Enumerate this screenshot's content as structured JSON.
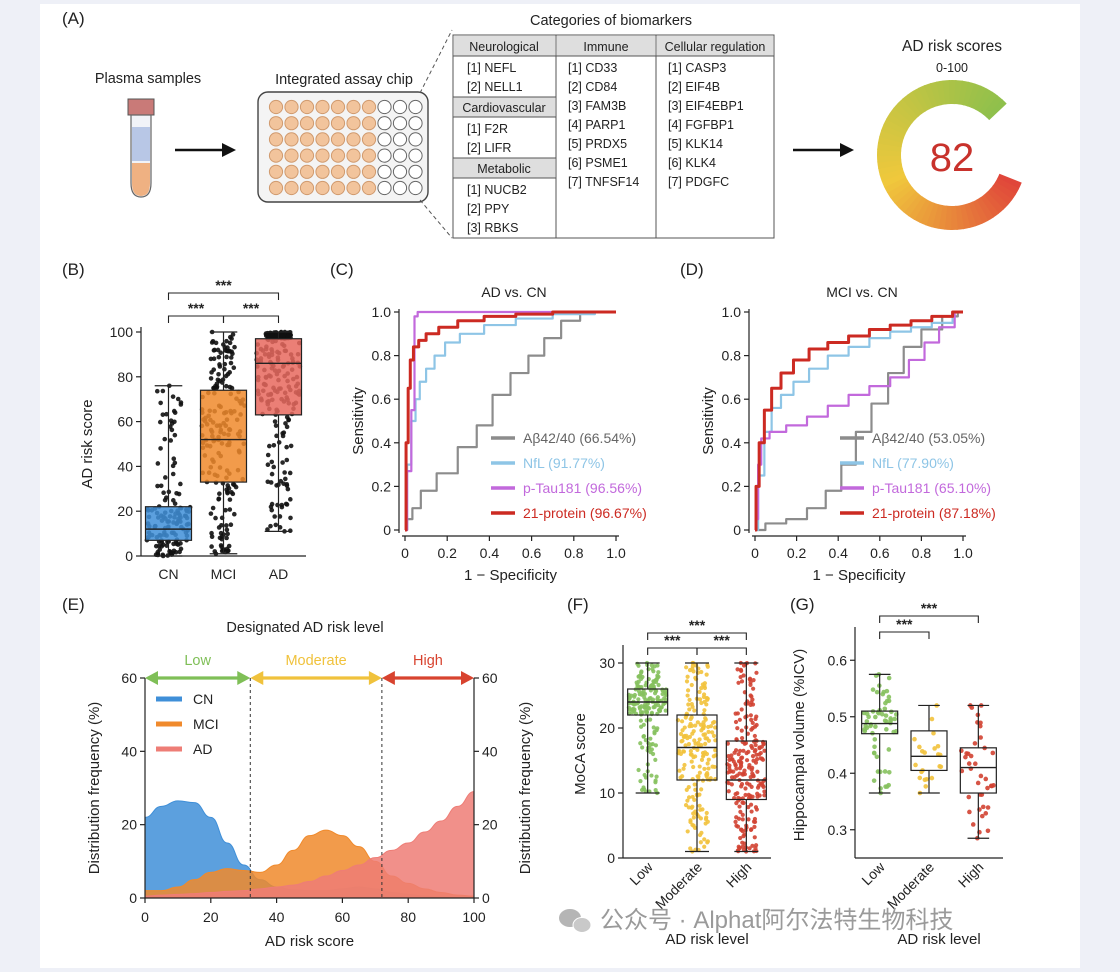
{
  "panel_tags": [
    "(A)",
    "(B)",
    "(C)",
    "(D)",
    "(E)",
    "(F)",
    "(G)"
  ],
  "panel_a": {
    "plasma_label": "Plasma samples",
    "chip_label": "Integrated assay chip",
    "table_title": "Categories of biomarkers",
    "neurological": {
      "header": "Neurological",
      "items": [
        "[1]  NEFL",
        "[2]  NELL1"
      ]
    },
    "cardiovascular": {
      "header": "Cardiovascular",
      "items": [
        "[1]  F2R",
        "[2]  LIFR"
      ]
    },
    "metabolic": {
      "header": "Metabolic",
      "items": [
        "[1]  NUCB2",
        "[2]  PPY",
        "[3]  RBKS"
      ]
    },
    "immune": {
      "header": "Immune",
      "items": [
        "[1]  CD33",
        "[2]  CD84",
        "[3]  FAM3B",
        "[4]  PARP1",
        "[5]  PRDX5",
        "[6]  PSME1",
        "[7]  TNFSF14"
      ]
    },
    "cellular": {
      "header": "Cellular regulation",
      "items": [
        "[1]  CASP3",
        "[2]  EIF4B",
        "[3]  EIF4EBP1",
        "[4]  FGFBP1",
        "[5]  KLK14",
        "[6]  KLK4",
        "[7]  PDGFC"
      ]
    },
    "risk_title": "AD risk scores",
    "risk_range": "0-100",
    "risk_value": "82",
    "colors": {
      "well": "#f2c49c",
      "tube_cap": "#c97a78",
      "tube_plasma": "#b8c7e6",
      "tube_cells": "#efb182",
      "gauge_red": "#e0463a",
      "gauge_yellow": "#f2d14a",
      "gauge_green": "#8cc04c",
      "score_text": "#c8322c"
    }
  },
  "chart_data": [
    {
      "id": "B",
      "type": "box",
      "categories": [
        "CN",
        "MCI",
        "AD"
      ],
      "ylabel": "AD risk score",
      "ylim": [
        0,
        100
      ],
      "yticks": [
        0,
        20,
        40,
        60,
        80,
        100
      ],
      "box_stats": [
        {
          "min": 0,
          "q1": 7,
          "median": 12,
          "q3": 22,
          "max": 76,
          "color": "#3f8fd8"
        },
        {
          "min": 1,
          "q1": 33,
          "median": 52,
          "q3": 74,
          "max": 100,
          "color": "#f08a2c"
        },
        {
          "min": 11,
          "q1": 63,
          "median": 86,
          "q3": 97,
          "max": 100,
          "color": "#e8685e"
        }
      ],
      "significance": [
        {
          "from": 0,
          "to": 1,
          "label": "***"
        },
        {
          "from": 1,
          "to": 2,
          "label": "***"
        },
        {
          "from": 0,
          "to": 2,
          "label": "***"
        }
      ]
    },
    {
      "id": "C",
      "type": "line",
      "title": "AD vs. CN",
      "xlabel": "1 − Specificity",
      "ylabel": "Sensitivity",
      "xlim": [
        0,
        1
      ],
      "ylim": [
        0,
        1
      ],
      "ticks": [
        "0",
        "0.2",
        "0.4",
        "0.6",
        "0.8",
        "1.0"
      ],
      "legend_position": "bottom-right",
      "series": [
        {
          "name": "Aβ42/40 (66.54%)",
          "color": "#8c8c8c",
          "points": [
            [
              0,
              0
            ],
            [
              0.02,
              0.05
            ],
            [
              0.05,
              0.1
            ],
            [
              0.1,
              0.18
            ],
            [
              0.2,
              0.26
            ],
            [
              0.3,
              0.38
            ],
            [
              0.38,
              0.48
            ],
            [
              0.45,
              0.62
            ],
            [
              0.55,
              0.72
            ],
            [
              0.62,
              0.8
            ],
            [
              0.7,
              0.88
            ],
            [
              0.78,
              0.96
            ],
            [
              0.88,
              1
            ],
            [
              1,
              1
            ]
          ]
        },
        {
          "name": "NfL (91.77%)",
          "color": "#8ec5e6",
          "points": [
            [
              0,
              0
            ],
            [
              0.02,
              0.3
            ],
            [
              0.04,
              0.5
            ],
            [
              0.06,
              0.6
            ],
            [
              0.08,
              0.68
            ],
            [
              0.12,
              0.74
            ],
            [
              0.16,
              0.8
            ],
            [
              0.22,
              0.86
            ],
            [
              0.3,
              0.9
            ],
            [
              0.45,
              0.94
            ],
            [
              0.6,
              0.97
            ],
            [
              0.8,
              0.99
            ],
            [
              1,
              1
            ]
          ]
        },
        {
          "name": "p-Tau181 (96.56%)",
          "color": "#c269dc",
          "points": [
            [
              0,
              0
            ],
            [
              0.02,
              0.27
            ],
            [
              0.04,
              0.55
            ],
            [
              0.05,
              0.98
            ],
            [
              0.07,
              1
            ],
            [
              1,
              1
            ]
          ]
        },
        {
          "name": "21-protein (96.67%)",
          "color": "#cc2a22",
          "points": [
            [
              0,
              0
            ],
            [
              0.01,
              0.4
            ],
            [
              0.02,
              0.65
            ],
            [
              0.03,
              0.78
            ],
            [
              0.05,
              0.84
            ],
            [
              0.08,
              0.87
            ],
            [
              0.12,
              0.9
            ],
            [
              0.2,
              0.93
            ],
            [
              0.3,
              0.96
            ],
            [
              0.45,
              0.98
            ],
            [
              0.6,
              0.99
            ],
            [
              0.8,
              1
            ],
            [
              1,
              1
            ]
          ]
        }
      ]
    },
    {
      "id": "D",
      "type": "line",
      "title": "MCI vs. CN",
      "xlabel": "1 − Specificity",
      "ylabel": "Sensitivity",
      "xlim": [
        0,
        1
      ],
      "ylim": [
        0,
        1
      ],
      "ticks": [
        "0",
        "0.2",
        "0.4",
        "0.6",
        "0.8",
        "1.0"
      ],
      "legend_position": "bottom-right",
      "series": [
        {
          "name": "Aβ42/40 (53.05%)",
          "color": "#8c8c8c",
          "points": [
            [
              0,
              0
            ],
            [
              0.1,
              0.03
            ],
            [
              0.2,
              0.05
            ],
            [
              0.3,
              0.1
            ],
            [
              0.38,
              0.18
            ],
            [
              0.45,
              0.3
            ],
            [
              0.52,
              0.45
            ],
            [
              0.6,
              0.58
            ],
            [
              0.68,
              0.72
            ],
            [
              0.75,
              0.84
            ],
            [
              0.85,
              0.92
            ],
            [
              0.95,
              0.98
            ],
            [
              1,
              1
            ]
          ]
        },
        {
          "name": "NfL (77.90%)",
          "color": "#8ec5e6",
          "points": [
            [
              0,
              0
            ],
            [
              0.03,
              0.25
            ],
            [
              0.06,
              0.45
            ],
            [
              0.1,
              0.56
            ],
            [
              0.15,
              0.62
            ],
            [
              0.22,
              0.68
            ],
            [
              0.3,
              0.74
            ],
            [
              0.4,
              0.8
            ],
            [
              0.5,
              0.84
            ],
            [
              0.6,
              0.88
            ],
            [
              0.7,
              0.91
            ],
            [
              0.8,
              0.93
            ],
            [
              0.9,
              0.95
            ],
            [
              1,
              1
            ]
          ]
        },
        {
          "name": "p-Tau181 (65.10%)",
          "color": "#c269dc",
          "points": [
            [
              0,
              0
            ],
            [
              0.01,
              0.05
            ],
            [
              0.02,
              0.3
            ],
            [
              0.04,
              0.42
            ],
            [
              0.1,
              0.45
            ],
            [
              0.2,
              0.48
            ],
            [
              0.3,
              0.52
            ],
            [
              0.4,
              0.57
            ],
            [
              0.5,
              0.62
            ],
            [
              0.6,
              0.66
            ],
            [
              0.7,
              0.7
            ],
            [
              0.78,
              0.78
            ],
            [
              0.85,
              0.86
            ],
            [
              0.92,
              0.93
            ],
            [
              1,
              1
            ]
          ]
        },
        {
          "name": "21-protein (87.18%)",
          "color": "#cc2a22",
          "points": [
            [
              0,
              0
            ],
            [
              0.01,
              0.2
            ],
            [
              0.03,
              0.4
            ],
            [
              0.06,
              0.55
            ],
            [
              0.1,
              0.65
            ],
            [
              0.15,
              0.72
            ],
            [
              0.22,
              0.78
            ],
            [
              0.3,
              0.83
            ],
            [
              0.4,
              0.86
            ],
            [
              0.5,
              0.89
            ],
            [
              0.6,
              0.92
            ],
            [
              0.7,
              0.94
            ],
            [
              0.8,
              0.96
            ],
            [
              0.9,
              0.98
            ],
            [
              1,
              1
            ]
          ]
        }
      ]
    },
    {
      "id": "E",
      "type": "area",
      "title": "Designated AD risk level",
      "xlabel": "AD risk score",
      "ylabel": "Distribution frequency (%)",
      "xlim": [
        0,
        100
      ],
      "ylim": [
        0,
        60
      ],
      "xticks": [
        0,
        20,
        40,
        60,
        80,
        100
      ],
      "yticks": [
        0,
        20,
        40,
        60
      ],
      "levels": [
        {
          "label": "Low",
          "from": 0,
          "to": 32,
          "color": "#7fbf57"
        },
        {
          "label": "Moderate",
          "from": 32,
          "to": 72,
          "color": "#f0c23c"
        },
        {
          "label": "High",
          "from": 72,
          "to": 100,
          "color": "#d8432f"
        }
      ],
      "series": [
        {
          "name": "CN",
          "color": "#3f8fd8",
          "x": [
            0,
            5,
            10,
            15,
            20,
            25,
            30,
            35,
            40,
            45,
            50,
            55,
            60,
            65,
            70,
            75,
            80,
            85,
            90,
            95,
            100
          ],
          "y": [
            22,
            25,
            26.5,
            26,
            22,
            15,
            9,
            5,
            3,
            2.2,
            2,
            2,
            2.5,
            3,
            2.5,
            1.5,
            1,
            0.5,
            0.2,
            0,
            0
          ]
        },
        {
          "name": "MCI",
          "color": "#f08a2c",
          "x": [
            0,
            5,
            10,
            15,
            20,
            25,
            30,
            35,
            40,
            45,
            50,
            55,
            60,
            65,
            70,
            75,
            80,
            85,
            90,
            95,
            100
          ],
          "y": [
            2,
            2,
            3,
            5,
            7,
            8,
            7.5,
            7,
            9,
            13,
            17,
            18.5,
            17,
            14,
            10,
            6,
            4,
            2.5,
            1.5,
            0.8,
            0.5
          ]
        },
        {
          "name": "AD",
          "color": "#ee7d76",
          "x": [
            0,
            5,
            10,
            15,
            20,
            25,
            30,
            35,
            40,
            45,
            50,
            55,
            60,
            65,
            70,
            75,
            80,
            85,
            90,
            95,
            100
          ],
          "y": [
            0.5,
            0.8,
            1,
            1.2,
            1.5,
            1.8,
            2,
            2.5,
            3,
            3.5,
            4.5,
            6,
            7.5,
            9,
            11,
            13,
            15,
            18,
            21,
            25,
            29
          ]
        }
      ]
    },
    {
      "id": "F",
      "type": "box",
      "categories": [
        "Low",
        "Moderate",
        "High"
      ],
      "xlabel": "AD risk level",
      "ylabel": "MoCA score",
      "ylim": [
        0,
        32
      ],
      "yticks": [
        0,
        10,
        20,
        30
      ],
      "box_stats": [
        {
          "min": 10,
          "q1": 22,
          "median": 24,
          "q3": 26,
          "max": 30,
          "color": "#7fbf57"
        },
        {
          "min": 1,
          "q1": 12,
          "median": 17,
          "q3": 22,
          "max": 30,
          "color": "#f0c23c"
        },
        {
          "min": 1,
          "q1": 9,
          "median": 12,
          "q3": 18,
          "max": 30,
          "color": "#d8432f"
        }
      ],
      "significance": [
        {
          "from": 0,
          "to": 1,
          "label": "***"
        },
        {
          "from": 1,
          "to": 2,
          "label": "***"
        },
        {
          "from": 0,
          "to": 2,
          "label": "***"
        }
      ]
    },
    {
      "id": "G",
      "type": "box",
      "categories": [
        "Low",
        "Moderate",
        "High"
      ],
      "xlabel": "AD risk level",
      "ylabel": "Hippocampal volume (%ICV)",
      "ylim": [
        0.25,
        0.65
      ],
      "yticks": [
        0.3,
        0.4,
        0.5,
        0.6
      ],
      "box_stats": [
        {
          "min": 0.365,
          "q1": 0.47,
          "median": 0.488,
          "q3": 0.51,
          "max": 0.575,
          "color": "#7fbf57"
        },
        {
          "min": 0.365,
          "q1": 0.405,
          "median": 0.43,
          "q3": 0.475,
          "max": 0.52,
          "color": "#f0c23c"
        },
        {
          "min": 0.285,
          "q1": 0.365,
          "median": 0.41,
          "q3": 0.445,
          "max": 0.52,
          "color": "#d8432f"
        }
      ],
      "significance": [
        {
          "from": 0,
          "to": 1,
          "label": "***"
        },
        {
          "from": 0,
          "to": 2,
          "label": "***"
        }
      ]
    }
  ],
  "watermark": "公众号 · Alphat阿尔法特生物科技"
}
